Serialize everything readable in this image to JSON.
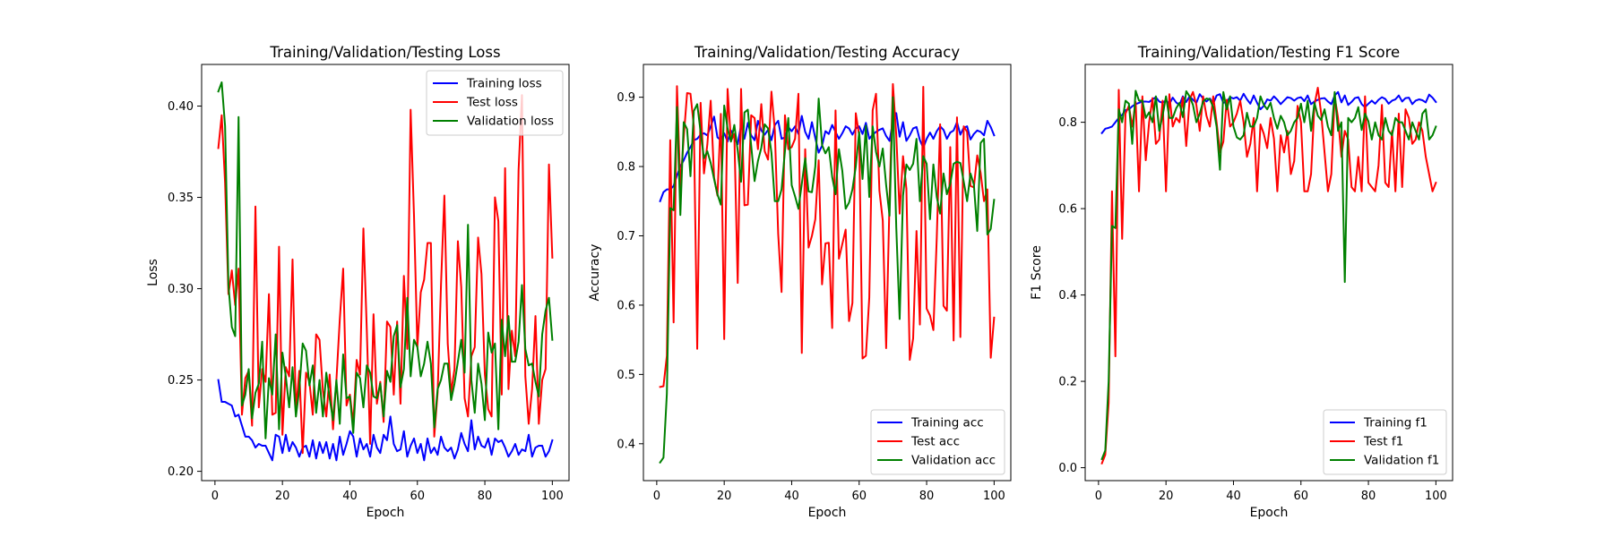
{
  "chart_data": [
    {
      "type": "line",
      "title": "Training/Validation/Testing Loss",
      "xlabel": "Epoch",
      "ylabel": "Loss",
      "xlim": [
        -3.95,
        104.95
      ],
      "ylim": [
        0.1949,
        0.4228
      ],
      "xticks": [
        0,
        20,
        40,
        60,
        80,
        100
      ],
      "yticks": [
        0.2,
        0.25,
        0.3,
        0.35,
        0.4
      ],
      "ytick_labels": [
        "0.20",
        "0.25",
        "0.30",
        "0.35",
        "0.40"
      ],
      "legend_position": "top-right",
      "series": [
        {
          "name": "Training loss",
          "color": "#0000ff",
          "x_start": 1,
          "values": [
            0.25,
            0.238,
            0.238,
            0.237,
            0.236,
            0.23,
            0.231,
            0.225,
            0.219,
            0.219,
            0.217,
            0.213,
            0.215,
            0.214,
            0.214,
            0.21,
            0.206,
            0.22,
            0.219,
            0.21,
            0.22,
            0.211,
            0.216,
            0.213,
            0.208,
            0.213,
            0.214,
            0.208,
            0.217,
            0.207,
            0.216,
            0.21,
            0.216,
            0.207,
            0.215,
            0.206,
            0.219,
            0.209,
            0.215,
            0.222,
            0.219,
            0.208,
            0.218,
            0.212,
            0.215,
            0.208,
            0.22,
            0.213,
            0.21,
            0.22,
            0.217,
            0.23,
            0.215,
            0.211,
            0.212,
            0.222,
            0.208,
            0.214,
            0.218,
            0.21,
            0.215,
            0.206,
            0.218,
            0.21,
            0.213,
            0.209,
            0.219,
            0.213,
            0.211,
            0.213,
            0.207,
            0.212,
            0.221,
            0.215,
            0.211,
            0.228,
            0.212,
            0.219,
            0.214,
            0.213,
            0.218,
            0.209,
            0.218,
            0.216,
            0.217,
            0.213,
            0.208,
            0.211,
            0.215,
            0.209,
            0.212,
            0.211,
            0.22,
            0.208,
            0.213,
            0.214,
            0.214,
            0.208,
            0.211,
            0.217
          ]
        },
        {
          "name": "Test loss",
          "color": "#ff0000",
          "x_start": 1,
          "values": [
            0.377,
            0.395,
            0.358,
            0.297,
            0.31,
            0.291,
            0.311,
            0.231,
            0.251,
            0.255,
            0.225,
            0.345,
            0.235,
            0.256,
            0.249,
            0.297,
            0.231,
            0.232,
            0.323,
            0.22,
            0.257,
            0.252,
            0.316,
            0.233,
            0.255,
            0.21,
            0.254,
            0.249,
            0.231,
            0.275,
            0.272,
            0.244,
            0.23,
            0.253,
            0.223,
            0.25,
            0.283,
            0.311,
            0.236,
            0.242,
            0.226,
            0.261,
            0.253,
            0.333,
            0.278,
            0.215,
            0.286,
            0.237,
            0.249,
            0.227,
            0.282,
            0.279,
            0.242,
            0.282,
            0.237,
            0.307,
            0.267,
            0.398,
            0.34,
            0.268,
            0.298,
            0.305,
            0.325,
            0.325,
            0.219,
            0.243,
            0.302,
            0.351,
            0.27,
            0.243,
            0.256,
            0.326,
            0.301,
            0.24,
            0.23,
            0.263,
            0.268,
            0.328,
            0.308,
            0.253,
            0.234,
            0.23,
            0.35,
            0.337,
            0.242,
            0.366,
            0.245,
            0.277,
            0.263,
            0.365,
            0.406,
            0.252,
            0.226,
            0.245,
            0.285,
            0.226,
            0.25,
            0.256,
            0.368,
            0.317
          ]
        },
        {
          "name": "Validation loss",
          "color": "#008000",
          "x_start": 1,
          "values": [
            0.408,
            0.413,
            0.389,
            0.302,
            0.279,
            0.274,
            0.394,
            0.236,
            0.242,
            0.256,
            0.229,
            0.243,
            0.248,
            0.271,
            0.218,
            0.251,
            0.242,
            0.275,
            0.223,
            0.265,
            0.252,
            0.235,
            0.257,
            0.23,
            0.245,
            0.27,
            0.266,
            0.247,
            0.258,
            0.232,
            0.25,
            0.23,
            0.254,
            0.24,
            0.228,
            0.25,
            0.226,
            0.264,
            0.24,
            0.241,
            0.221,
            0.254,
            0.251,
            0.235,
            0.258,
            0.254,
            0.241,
            0.24,
            0.248,
            0.23,
            0.255,
            0.249,
            0.274,
            0.28,
            0.246,
            0.256,
            0.295,
            0.252,
            0.272,
            0.268,
            0.252,
            0.259,
            0.271,
            0.259,
            0.224,
            0.245,
            0.25,
            0.259,
            0.259,
            0.239,
            0.248,
            0.26,
            0.272,
            0.254,
            0.335,
            0.25,
            0.232,
            0.259,
            0.248,
            0.228,
            0.276,
            0.265,
            0.27,
            0.223,
            0.283,
            0.263,
            0.285,
            0.26,
            0.26,
            0.271,
            0.302,
            0.267,
            0.258,
            0.259,
            0.249,
            0.241,
            0.275,
            0.288,
            0.295,
            0.272
          ]
        }
      ]
    },
    {
      "type": "line",
      "title": "Training/Validation/Testing Accuracy",
      "xlabel": "Epoch",
      "ylabel": "Accuracy",
      "xlim": [
        -3.95,
        104.95
      ],
      "ylim": [
        0.3468,
        0.9473
      ],
      "xticks": [
        0,
        20,
        40,
        60,
        80,
        100
      ],
      "yticks": [
        0.4,
        0.5,
        0.6,
        0.7,
        0.8,
        0.9
      ],
      "ytick_labels": [
        "0.4",
        "0.5",
        "0.6",
        "0.7",
        "0.8",
        "0.9"
      ],
      "legend_position": "bottom-right",
      "series": [
        {
          "name": "Training acc",
          "color": "#0000ff",
          "x_start": 1,
          "values": [
            0.75,
            0.763,
            0.767,
            0.767,
            0.772,
            0.787,
            0.8,
            0.809,
            0.82,
            0.828,
            0.838,
            0.84,
            0.846,
            0.848,
            0.845,
            0.858,
            0.872,
            0.842,
            0.838,
            0.848,
            0.836,
            0.852,
            0.842,
            0.832,
            0.86,
            0.84,
            0.863,
            0.845,
            0.838,
            0.866,
            0.852,
            0.846,
            0.853,
            0.838,
            0.86,
            0.866,
            0.84,
            0.842,
            0.857,
            0.851,
            0.858,
            0.847,
            0.873,
            0.85,
            0.84,
            0.864,
            0.841,
            0.82,
            0.83,
            0.851,
            0.847,
            0.86,
            0.85,
            0.84,
            0.848,
            0.858,
            0.855,
            0.846,
            0.855,
            0.858,
            0.847,
            0.863,
            0.84,
            0.846,
            0.85,
            0.853,
            0.855,
            0.844,
            0.837,
            0.865,
            0.877,
            0.843,
            0.864,
            0.837,
            0.845,
            0.855,
            0.857,
            0.838,
            0.827,
            0.84,
            0.849,
            0.84,
            0.851,
            0.858,
            0.853,
            0.84,
            0.849,
            0.852,
            0.864,
            0.846,
            0.856,
            0.858,
            0.839,
            0.847,
            0.852,
            0.85,
            0.845,
            0.866,
            0.857,
            0.845
          ]
        },
        {
          "name": "Test acc",
          "color": "#ff0000",
          "x_start": 1,
          "values": [
            0.482,
            0.483,
            0.527,
            0.838,
            0.575,
            0.916,
            0.77,
            0.842,
            0.906,
            0.905,
            0.858,
            0.537,
            0.892,
            0.79,
            0.832,
            0.895,
            0.784,
            0.758,
            0.876,
            0.551,
            0.912,
            0.837,
            0.847,
            0.632,
            0.912,
            0.744,
            0.745,
            0.874,
            0.87,
            0.825,
            0.89,
            0.822,
            0.81,
            0.908,
            0.852,
            0.703,
            0.619,
            0.874,
            0.825,
            0.828,
            0.84,
            0.905,
            0.531,
            0.825,
            0.683,
            0.7,
            0.724,
            0.809,
            0.63,
            0.689,
            0.69,
            0.567,
            0.881,
            0.667,
            0.688,
            0.709,
            0.577,
            0.603,
            0.877,
            0.845,
            0.523,
            0.527,
            0.611,
            0.881,
            0.905,
            0.765,
            0.722,
            0.538,
            0.751,
            0.919,
            0.845,
            0.732,
            0.815,
            0.768,
            0.521,
            0.552,
            0.707,
            0.572,
            0.915,
            0.595,
            0.585,
            0.564,
            0.697,
            0.861,
            0.599,
            0.592,
            0.828,
            0.549,
            0.871,
            0.554,
            0.858,
            0.85,
            0.772,
            0.77,
            0.816,
            0.791,
            0.75,
            0.767,
            0.524,
            0.582
          ]
        },
        {
          "name": "Validation acc",
          "color": "#008000",
          "x_start": 1,
          "values": [
            0.373,
            0.38,
            0.472,
            0.74,
            0.737,
            0.886,
            0.73,
            0.864,
            0.854,
            0.786,
            0.88,
            0.89,
            0.85,
            0.812,
            0.822,
            0.805,
            0.782,
            0.76,
            0.745,
            0.888,
            0.855,
            0.836,
            0.86,
            0.823,
            0.778,
            0.878,
            0.882,
            0.83,
            0.779,
            0.808,
            0.827,
            0.861,
            0.855,
            0.82,
            0.75,
            0.75,
            0.767,
            0.822,
            0.87,
            0.773,
            0.757,
            0.739,
            0.775,
            0.812,
            0.764,
            0.763,
            0.8,
            0.898,
            0.831,
            0.819,
            0.828,
            0.785,
            0.76,
            0.825,
            0.794,
            0.739,
            0.748,
            0.767,
            0.8,
            0.85,
            0.782,
            0.859,
            0.756,
            0.858,
            0.821,
            0.8,
            0.826,
            0.773,
            0.729,
            0.9,
            0.712,
            0.58,
            0.758,
            0.803,
            0.795,
            0.804,
            0.84,
            0.75,
            0.815,
            0.804,
            0.724,
            0.803,
            0.756,
            0.732,
            0.79,
            0.76,
            0.775,
            0.804,
            0.807,
            0.805,
            0.778,
            0.75,
            0.79,
            0.774,
            0.707,
            0.834,
            0.84,
            0.702,
            0.71,
            0.752
          ]
        }
      ]
    },
    {
      "type": "line",
      "title": "Training/Validation/Testing F1 Score",
      "xlabel": "Epoch",
      "ylabel": "F1 Score",
      "xlim": [
        -3.95,
        104.95
      ],
      "ylim": [
        -0.0299,
        0.9339
      ],
      "xticks": [
        0,
        20,
        40,
        60,
        80,
        100
      ],
      "yticks": [
        0.0,
        0.2,
        0.4,
        0.6,
        0.8
      ],
      "ytick_labels": [
        "0.0",
        "0.2",
        "0.4",
        "0.6",
        "0.8"
      ],
      "legend_position": "bottom-right",
      "series": [
        {
          "name": "Training f1",
          "color": "#0000ff",
          "x_start": 1,
          "values": [
            0.775,
            0.785,
            0.787,
            0.79,
            0.8,
            0.81,
            0.817,
            0.828,
            0.83,
            0.837,
            0.842,
            0.845,
            0.848,
            0.848,
            0.847,
            0.853,
            0.858,
            0.848,
            0.845,
            0.851,
            0.842,
            0.857,
            0.846,
            0.84,
            0.86,
            0.847,
            0.86,
            0.852,
            0.845,
            0.865,
            0.855,
            0.848,
            0.855,
            0.843,
            0.862,
            0.865,
            0.845,
            0.848,
            0.858,
            0.855,
            0.858,
            0.85,
            0.866,
            0.853,
            0.843,
            0.862,
            0.845,
            0.83,
            0.838,
            0.853,
            0.85,
            0.86,
            0.852,
            0.842,
            0.85,
            0.858,
            0.856,
            0.85,
            0.856,
            0.858,
            0.849,
            0.862,
            0.842,
            0.848,
            0.852,
            0.855,
            0.856,
            0.848,
            0.842,
            0.862,
            0.87,
            0.846,
            0.862,
            0.84,
            0.847,
            0.856,
            0.858,
            0.842,
            0.835,
            0.843,
            0.85,
            0.843,
            0.852,
            0.858,
            0.854,
            0.843,
            0.85,
            0.853,
            0.862,
            0.848,
            0.856,
            0.857,
            0.842,
            0.85,
            0.853,
            0.851,
            0.846,
            0.864,
            0.857,
            0.847
          ]
        },
        {
          "name": "Test f1",
          "color": "#ff0000",
          "x_start": 1,
          "values": [
            0.01,
            0.03,
            0.15,
            0.64,
            0.258,
            0.875,
            0.53,
            0.82,
            0.838,
            0.79,
            0.847,
            0.64,
            0.86,
            0.712,
            0.8,
            0.856,
            0.75,
            0.76,
            0.85,
            0.64,
            0.865,
            0.79,
            0.81,
            0.8,
            0.858,
            0.745,
            0.853,
            0.87,
            0.84,
            0.78,
            0.86,
            0.815,
            0.79,
            0.86,
            0.8,
            0.73,
            0.755,
            0.852,
            0.79,
            0.8,
            0.82,
            0.85,
            0.8,
            0.72,
            0.75,
            0.81,
            0.64,
            0.795,
            0.773,
            0.74,
            0.81,
            0.762,
            0.64,
            0.77,
            0.73,
            0.78,
            0.68,
            0.71,
            0.838,
            0.8,
            0.64,
            0.64,
            0.68,
            0.84,
            0.88,
            0.82,
            0.73,
            0.64,
            0.68,
            0.86,
            0.81,
            0.72,
            0.78,
            0.76,
            0.65,
            0.64,
            0.72,
            0.64,
            0.86,
            0.66,
            0.65,
            0.64,
            0.7,
            0.84,
            0.66,
            0.65,
            0.78,
            0.64,
            0.82,
            0.65,
            0.83,
            0.81,
            0.75,
            0.76,
            0.8,
            0.78,
            0.72,
            0.68,
            0.64,
            0.66
          ]
        },
        {
          "name": "Validation f1",
          "color": "#008000",
          "x_start": 1,
          "values": [
            0.02,
            0.04,
            0.2,
            0.56,
            0.555,
            0.83,
            0.8,
            0.85,
            0.843,
            0.75,
            0.873,
            0.85,
            0.85,
            0.81,
            0.823,
            0.8,
            0.86,
            0.78,
            0.815,
            0.86,
            0.81,
            0.81,
            0.832,
            0.845,
            0.812,
            0.872,
            0.86,
            0.84,
            0.8,
            0.82,
            0.848,
            0.855,
            0.853,
            0.835,
            0.79,
            0.69,
            0.87,
            0.83,
            0.86,
            0.79,
            0.765,
            0.76,
            0.77,
            0.822,
            0.79,
            0.79,
            0.81,
            0.86,
            0.84,
            0.83,
            0.845,
            0.81,
            0.785,
            0.815,
            0.8,
            0.77,
            0.78,
            0.8,
            0.81,
            0.843,
            0.8,
            0.85,
            0.78,
            0.845,
            0.815,
            0.805,
            0.83,
            0.79,
            0.77,
            0.87,
            0.78,
            0.8,
            0.43,
            0.81,
            0.8,
            0.81,
            0.835,
            0.782,
            0.82,
            0.802,
            0.76,
            0.8,
            0.77,
            0.76,
            0.81,
            0.78,
            0.77,
            0.81,
            0.8,
            0.8,
            0.78,
            0.76,
            0.8,
            0.78,
            0.76,
            0.82,
            0.83,
            0.76,
            0.77,
            0.79
          ]
        }
      ]
    }
  ]
}
